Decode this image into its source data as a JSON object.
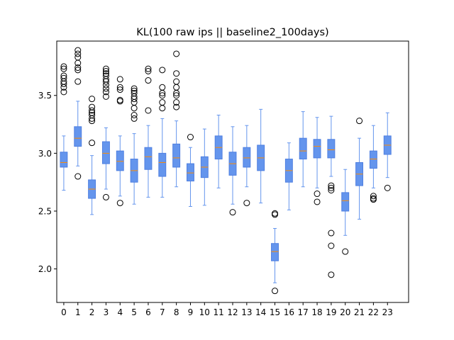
{
  "chart_data": {
    "type": "box",
    "title": "KL(100 raw ips || baseline2_100days)",
    "xlabel": "",
    "ylabel": "",
    "categories": [
      "0",
      "1",
      "2",
      "3",
      "4",
      "5",
      "6",
      "7",
      "8",
      "9",
      "10",
      "11",
      "12",
      "13",
      "14",
      "15",
      "16",
      "17",
      "18",
      "19",
      "20",
      "21",
      "22",
      "23"
    ],
    "ylim": [
      1.71,
      3.97
    ],
    "yticks": [
      2.0,
      2.5,
      3.0,
      3.5
    ],
    "ytick_labels": [
      "2.0",
      "2.5",
      "3.0",
      "3.5"
    ],
    "grid": false,
    "legend": "none",
    "colors": {
      "box_fill": "#6495ED",
      "box_edge": "#4f7fe0",
      "whisker": "#6495ED",
      "median": "#ff8c00",
      "flier": "#000000",
      "axes": "#000000"
    },
    "boxes": [
      {
        "label": "0",
        "whislo": 2.68,
        "q1": 2.88,
        "med": 2.92,
        "q3": 3.01,
        "whishi": 3.15,
        "fliers": [
          3.53,
          3.57,
          3.6,
          3.62,
          3.65,
          3.67,
          3.73,
          3.75
        ]
      },
      {
        "label": "1",
        "whislo": 2.89,
        "q1": 3.06,
        "med": 3.13,
        "q3": 3.23,
        "whishi": 3.45,
        "fliers": [
          2.8,
          3.62,
          3.72,
          3.74,
          3.78,
          3.83,
          3.86,
          3.89
        ]
      },
      {
        "label": "2",
        "whislo": 2.47,
        "q1": 2.61,
        "med": 2.69,
        "q3": 2.77,
        "whishi": 2.98,
        "fliers": [
          3.09,
          3.28,
          3.3,
          3.33,
          3.35,
          3.37,
          3.4,
          3.47
        ]
      },
      {
        "label": "3",
        "whislo": 2.69,
        "q1": 2.91,
        "med": 3.0,
        "q3": 3.1,
        "whishi": 3.22,
        "fliers": [
          2.62,
          3.49,
          3.53,
          3.56,
          3.59,
          3.62,
          3.64,
          3.67,
          3.69,
          3.71,
          3.73
        ]
      },
      {
        "label": "4",
        "whislo": 2.63,
        "q1": 2.85,
        "med": 2.93,
        "q3": 3.02,
        "whishi": 3.15,
        "fliers": [
          2.57,
          3.45,
          3.46,
          3.55,
          3.57,
          3.64
        ]
      },
      {
        "label": "5",
        "whislo": 2.56,
        "q1": 2.75,
        "med": 2.85,
        "q3": 2.95,
        "whishi": 3.17,
        "fliers": [
          3.3,
          3.33,
          3.39,
          3.44,
          3.47,
          3.49,
          3.52,
          3.54,
          3.56
        ]
      },
      {
        "label": "6",
        "whislo": 2.62,
        "q1": 2.86,
        "med": 2.97,
        "q3": 3.05,
        "whishi": 3.24,
        "fliers": [
          3.37,
          3.63,
          3.71,
          3.73
        ]
      },
      {
        "label": "7",
        "whislo": 2.62,
        "q1": 2.8,
        "med": 2.92,
        "q3": 3.0,
        "whishi": 3.3,
        "fliers": [
          3.39,
          3.44,
          3.5,
          3.52,
          3.57,
          3.72
        ]
      },
      {
        "label": "8",
        "whislo": 2.71,
        "q1": 2.88,
        "med": 2.96,
        "q3": 3.08,
        "whishi": 3.28,
        "fliers": [
          3.4,
          3.44,
          3.5,
          3.52,
          3.57,
          3.62,
          3.69,
          3.86
        ]
      },
      {
        "label": "9",
        "whislo": 2.54,
        "q1": 2.76,
        "med": 2.83,
        "q3": 2.91,
        "whishi": 3.05,
        "fliers": [
          3.14
        ]
      },
      {
        "label": "10",
        "whislo": 2.55,
        "q1": 2.79,
        "med": 2.88,
        "q3": 2.97,
        "whishi": 3.21,
        "fliers": []
      },
      {
        "label": "11",
        "whislo": 2.7,
        "q1": 2.95,
        "med": 3.05,
        "q3": 3.15,
        "whishi": 3.33,
        "fliers": []
      },
      {
        "label": "12",
        "whislo": 2.56,
        "q1": 2.81,
        "med": 2.91,
        "q3": 3.01,
        "whishi": 3.23,
        "fliers": [
          2.49
        ]
      },
      {
        "label": "13",
        "whislo": 2.71,
        "q1": 2.88,
        "med": 2.96,
        "q3": 3.05,
        "whishi": 3.24,
        "fliers": [
          2.57
        ]
      },
      {
        "label": "14",
        "whislo": 2.57,
        "q1": 2.85,
        "med": 2.96,
        "q3": 3.07,
        "whishi": 3.38,
        "fliers": []
      },
      {
        "label": "15",
        "whislo": 1.88,
        "q1": 2.07,
        "med": 2.15,
        "q3": 2.22,
        "whishi": 2.35,
        "fliers": [
          1.81,
          2.47,
          2.48
        ]
      },
      {
        "label": "16",
        "whislo": 2.51,
        "q1": 2.75,
        "med": 2.85,
        "q3": 2.95,
        "whishi": 3.09,
        "fliers": []
      },
      {
        "label": "17",
        "whislo": 2.71,
        "q1": 2.95,
        "med": 3.02,
        "q3": 3.13,
        "whishi": 3.36,
        "fliers": []
      },
      {
        "label": "18",
        "whislo": 2.7,
        "q1": 2.96,
        "med": 3.06,
        "q3": 3.12,
        "whishi": 3.31,
        "fliers": [
          2.58,
          2.65
        ]
      },
      {
        "label": "19",
        "whislo": 2.8,
        "q1": 2.96,
        "med": 3.03,
        "q3": 3.12,
        "whishi": 3.32,
        "fliers": [
          1.95,
          2.2,
          2.31,
          2.68,
          2.7,
          2.72
        ]
      },
      {
        "label": "20",
        "whislo": 2.29,
        "q1": 2.5,
        "med": 2.59,
        "q3": 2.66,
        "whishi": 2.86,
        "fliers": [
          2.15
        ]
      },
      {
        "label": "21",
        "whislo": 2.43,
        "q1": 2.72,
        "med": 2.82,
        "q3": 2.92,
        "whishi": 3.13,
        "fliers": [
          3.28
        ]
      },
      {
        "label": "22",
        "whislo": 2.7,
        "q1": 2.87,
        "med": 2.95,
        "q3": 3.02,
        "whishi": 3.24,
        "fliers": [
          2.6,
          2.61,
          2.63
        ]
      },
      {
        "label": "23",
        "whislo": 2.79,
        "q1": 2.99,
        "med": 3.07,
        "q3": 3.15,
        "whishi": 3.35,
        "fliers": [
          2.7
        ]
      }
    ]
  }
}
